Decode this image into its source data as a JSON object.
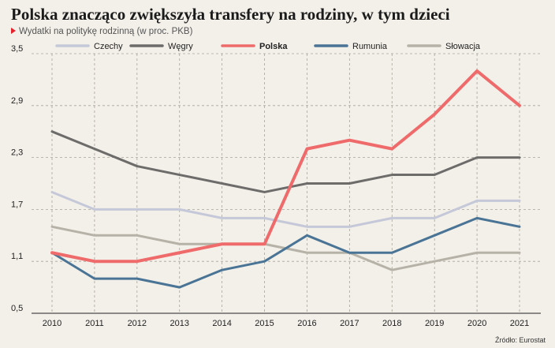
{
  "header": {
    "title": "Polska znacząco zwiększyła transfery na rodziny, w tym dzieci",
    "subtitle": "Wydatki na politykę rodzinną (w proc. PKB)"
  },
  "footer": {
    "source": "Źródło: Eurostat"
  },
  "chart_data": {
    "type": "line",
    "x": [
      "2010",
      "2011",
      "2012",
      "2013",
      "2014",
      "2015",
      "2016",
      "2017",
      "2018",
      "2019",
      "2020",
      "2021"
    ],
    "ylim": [
      0.5,
      3.5
    ],
    "yticks": [
      "0,5",
      "1,1",
      "1,7",
      "2,3",
      "2,9",
      "3,5"
    ],
    "ytick_values": [
      0.5,
      1.1,
      1.7,
      2.3,
      2.9,
      3.5
    ],
    "grid": "dashed",
    "legend_position": "top",
    "series": [
      {
        "name": "Czechy",
        "color": "#c5c8d8",
        "bold": false,
        "values": [
          1.9,
          1.7,
          1.7,
          1.7,
          1.6,
          1.6,
          1.5,
          1.5,
          1.6,
          1.6,
          1.8,
          1.8
        ]
      },
      {
        "name": "Węgry",
        "color": "#6e6c6b",
        "bold": false,
        "values": [
          2.6,
          2.4,
          2.2,
          2.1,
          2.0,
          1.9,
          2.0,
          2.0,
          2.1,
          2.1,
          2.3,
          2.3
        ]
      },
      {
        "name": "Polska",
        "color": "#ef6b6b",
        "bold": true,
        "values": [
          1.2,
          1.1,
          1.1,
          1.2,
          1.3,
          1.3,
          2.4,
          2.5,
          2.4,
          2.8,
          3.3,
          2.9
        ]
      },
      {
        "name": "Rumunia",
        "color": "#4a7495",
        "bold": false,
        "values": [
          1.2,
          0.9,
          0.9,
          0.8,
          1.0,
          1.1,
          1.4,
          1.2,
          1.2,
          1.4,
          1.6,
          1.5
        ]
      },
      {
        "name": "Słowacja",
        "color": "#b6b2a8",
        "bold": false,
        "values": [
          1.5,
          1.4,
          1.4,
          1.3,
          1.3,
          1.3,
          1.2,
          1.2,
          1.0,
          1.1,
          1.2,
          1.2
        ]
      }
    ]
  }
}
